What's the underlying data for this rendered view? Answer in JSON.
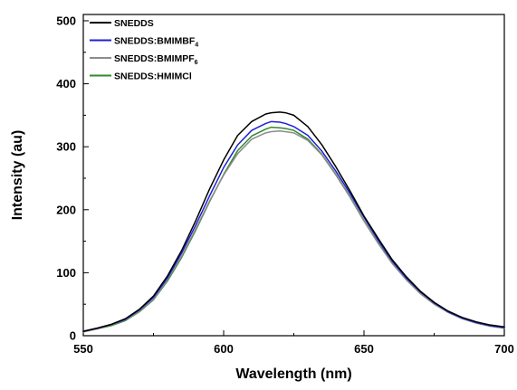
{
  "chart_data": {
    "type": "line",
    "xlabel": "Wavelength (nm)",
    "ylabel": "Intensity (au)",
    "xlim": [
      550,
      700
    ],
    "ylim": [
      0,
      510
    ],
    "xticks": [
      550,
      600,
      650,
      700
    ],
    "xtick_labels": [
      "550",
      "600",
      "650",
      "700"
    ],
    "yticks": [
      0,
      100,
      200,
      300,
      400,
      500
    ],
    "ytick_labels": [
      "0",
      "100",
      "200",
      "300",
      "400",
      "500"
    ],
    "legend_position": "top-left",
    "grid": false,
    "x": [
      550,
      555,
      560,
      565,
      570,
      575,
      580,
      585,
      590,
      595,
      600,
      605,
      610,
      615,
      617,
      620,
      622,
      625,
      630,
      635,
      640,
      645,
      650,
      655,
      660,
      665,
      670,
      675,
      680,
      685,
      690,
      695,
      700
    ],
    "series": [
      {
        "name": "SNEDDS",
        "name_main": "SNEDDS",
        "name_sub": "",
        "color": "#000000",
        "values": [
          7,
          12,
          18,
          27,
          42,
          63,
          95,
          135,
          182,
          233,
          279,
          318,
          340,
          352,
          354,
          355,
          354,
          350,
          332,
          303,
          268,
          230,
          190,
          155,
          121,
          94,
          71,
          53,
          39,
          29,
          22,
          17,
          14
        ]
      },
      {
        "name": "SNEDDS:BMIMBF4",
        "name_main": "SNEDDS:BMIMBF",
        "name_sub": "4",
        "color": "#1f1fd6",
        "values": [
          7,
          12,
          18,
          26,
          41,
          61,
          92,
          131,
          175,
          222,
          267,
          303,
          326,
          337,
          340,
          339,
          337,
          332,
          318,
          293,
          261,
          226,
          188,
          152,
          119,
          92,
          70,
          52,
          38,
          28,
          21,
          16,
          13
        ]
      },
      {
        "name": "SNEDDS:BMIMPF6",
        "name_main": "SNEDDS:BMIMPF",
        "name_sub": "6",
        "color": "#8c8c8c",
        "values": [
          6,
          11,
          17,
          25,
          39,
          58,
          89,
          126,
          169,
          214,
          255,
          289,
          312,
          322,
          324,
          325,
          324,
          322,
          310,
          287,
          255,
          220,
          182,
          147,
          115,
          89,
          67,
          50,
          37,
          27,
          20,
          15,
          12
        ]
      },
      {
        "name": "SNEDDS:HMIMCl",
        "name_main": "SNEDDS:HMIMCl",
        "name_sub": "",
        "color": "#2e8b2e",
        "values": [
          6,
          11,
          16,
          24,
          38,
          57,
          87,
          124,
          167,
          213,
          256,
          294,
          317,
          328,
          331,
          330,
          329,
          326,
          312,
          288,
          256,
          221,
          183,
          148,
          116,
          90,
          68,
          51,
          37,
          27,
          20,
          15,
          12
        ]
      }
    ]
  }
}
